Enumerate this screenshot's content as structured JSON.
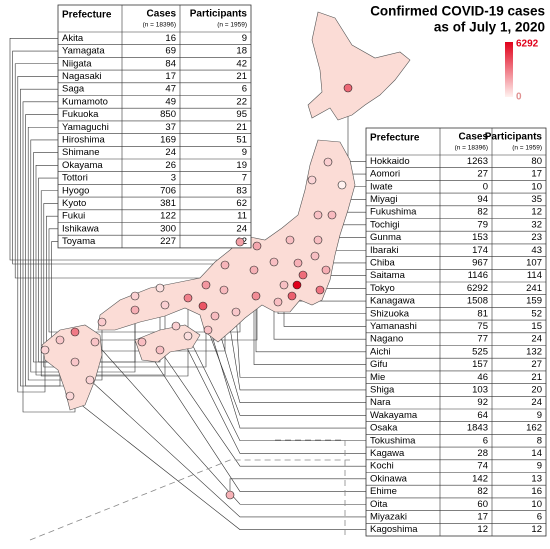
{
  "title": "Confirmed COVID-19 cases",
  "subtitle": "as of July 1, 2020",
  "legend": {
    "max": 6292,
    "min": 0
  },
  "tables": [
    {
      "header": [
        "Prefecture",
        "Cases",
        "Participants"
      ],
      "subheader": [
        "(n = 18396)",
        "(n = 1959)"
      ],
      "rows": [
        [
          "Akita",
          16,
          9
        ],
        [
          "Yamagata",
          69,
          18
        ],
        [
          "Niigata",
          84,
          42
        ],
        [
          "Nagasaki",
          17,
          21
        ],
        [
          "Saga",
          47,
          6
        ],
        [
          "Kumamoto",
          49,
          22
        ],
        [
          "Fukuoka",
          850,
          95
        ],
        [
          "Yamaguchi",
          37,
          21
        ],
        [
          "Hiroshima",
          169,
          51
        ],
        [
          "Shimane",
          24,
          9
        ],
        [
          "Okayama",
          26,
          19
        ],
        [
          "Tottori",
          3,
          7
        ],
        [
          "Hyogo",
          706,
          83
        ],
        [
          "Kyoto",
          381,
          62
        ],
        [
          "Fukui",
          122,
          11
        ],
        [
          "Ishikawa",
          300,
          24
        ],
        [
          "Toyama",
          227,
          12
        ]
      ]
    },
    {
      "header": [
        "Prefecture",
        "Cases",
        "Participants"
      ],
      "subheader": [
        "(n = 18396)",
        "(n = 1959)"
      ],
      "rows": [
        [
          "Hokkaido",
          1263,
          80
        ],
        [
          "Aomori",
          27,
          17
        ],
        [
          "Iwate",
          0,
          10
        ],
        [
          "Miyagi",
          94,
          35
        ],
        [
          "Fukushima",
          82,
          12
        ],
        [
          "Tochigi",
          79,
          32
        ],
        [
          "Gunma",
          153,
          23
        ],
        [
          "Ibaraki",
          174,
          43
        ],
        [
          "Chiba",
          967,
          107
        ],
        [
          "Saitama",
          1146,
          114
        ],
        [
          "Tokyo",
          6292,
          241
        ],
        [
          "Kanagawa",
          1508,
          159
        ],
        [
          "Shizuoka",
          81,
          52
        ],
        [
          "Yamanashi",
          75,
          15
        ],
        [
          "Nagano",
          77,
          24
        ],
        [
          "Aichi",
          525,
          132
        ],
        [
          "Gifu",
          157,
          27
        ],
        [
          "Mie",
          46,
          21
        ],
        [
          "Shiga",
          103,
          20
        ],
        [
          "Nara",
          92,
          24
        ],
        [
          "Wakayama",
          64,
          9
        ],
        [
          "Osaka",
          1843,
          162
        ],
        [
          "Tokushima",
          6,
          8
        ],
        [
          "Kagawa",
          28,
          14
        ],
        [
          "Kochi",
          74,
          9
        ],
        [
          "Okinawa",
          142,
          13
        ],
        [
          "Ehime",
          82,
          16
        ],
        [
          "Oita",
          60,
          10
        ],
        [
          "Miyazaki",
          17,
          6
        ],
        [
          "Kagoshima",
          12,
          12
        ]
      ]
    }
  ]
}
